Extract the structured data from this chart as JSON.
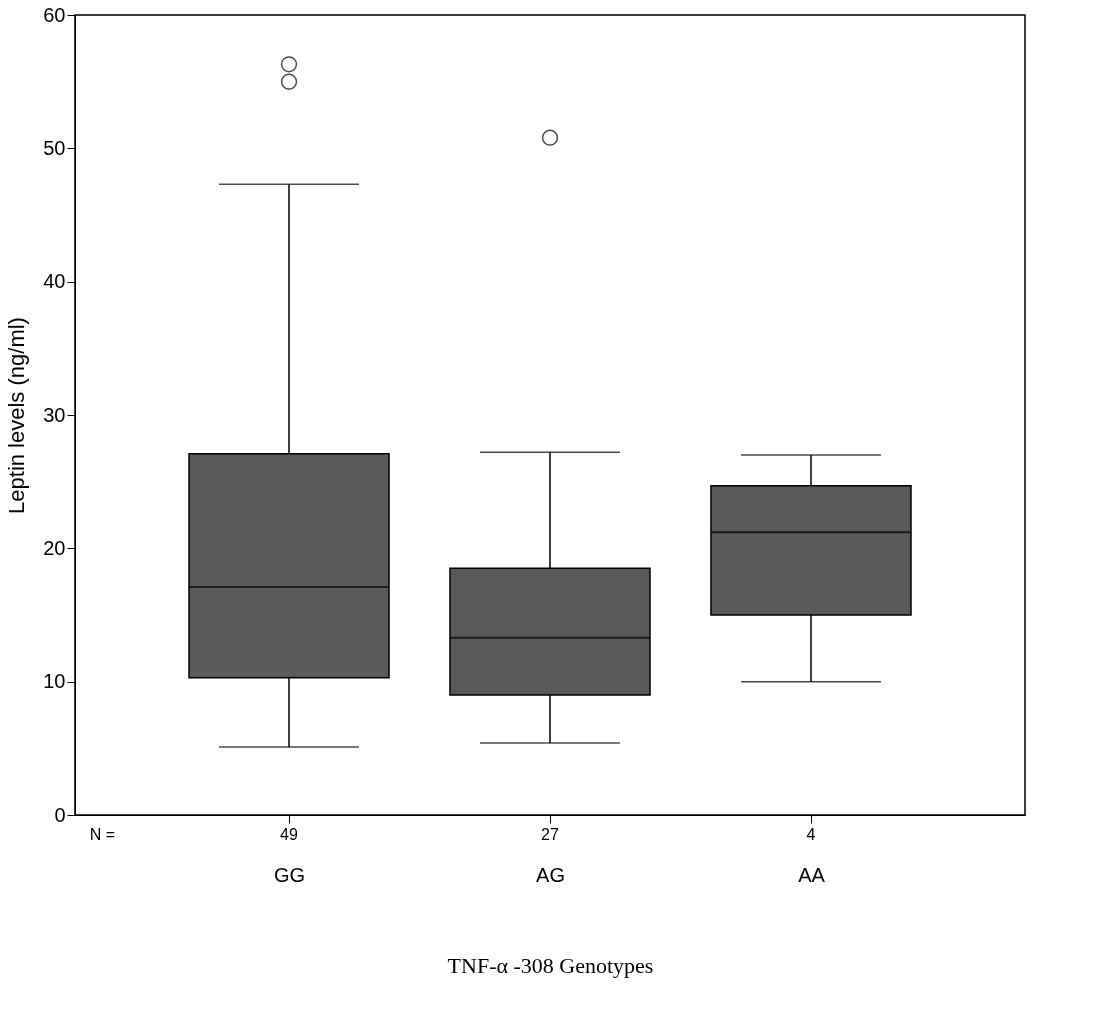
{
  "chart_data": {
    "type": "box",
    "xlabel": "TNF-α -308 Genotypes",
    "ylabel": "Leptin levels (ng/ml)",
    "categories": [
      "GG",
      "AG",
      "AA"
    ],
    "boxes": [
      {
        "low": 5.1,
        "q1": 10.3,
        "median": 17.1,
        "q3": 27.1,
        "high": 47.3,
        "outliers": [
          55.0,
          56.3
        ]
      },
      {
        "low": 5.4,
        "q1": 9.0,
        "median": 13.3,
        "q3": 18.5,
        "high": 27.2,
        "outliers": [
          50.8
        ]
      },
      {
        "low": 10.0,
        "q1": 15.0,
        "median": 21.2,
        "q3": 24.7,
        "high": 27.0
      }
    ],
    "color": "#5a5a5a",
    "ylim": [
      0,
      60
    ],
    "yticks": [
      0,
      10,
      20,
      30,
      40,
      50,
      60
    ],
    "annotations": [
      "N =",
      "49",
      "27",
      "4"
    ]
  }
}
